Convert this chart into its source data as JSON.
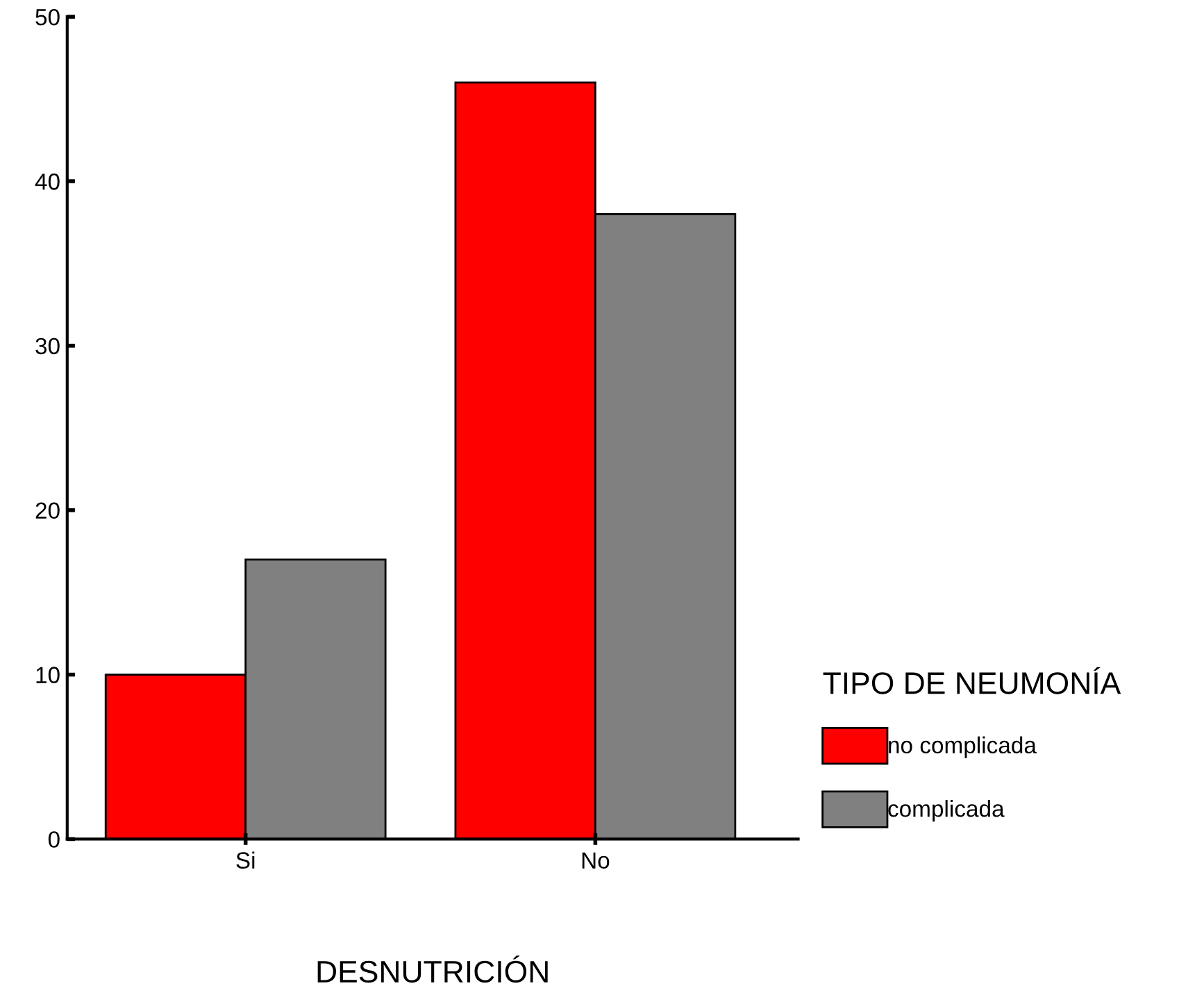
{
  "chart_data": {
    "type": "bar",
    "xlabel": "DESNUTRICIÓN",
    "legend_title": "TIPO DE NEUMONÍA",
    "categories": [
      "Si",
      "No"
    ],
    "series": [
      {
        "name": "no complicada",
        "color": "#ff0000",
        "values": [
          10,
          46
        ]
      },
      {
        "name": "complicada",
        "color": "#808080",
        "values": [
          17,
          38
        ]
      }
    ],
    "ylim": [
      0,
      50
    ],
    "yticks": [
      0,
      10,
      20,
      30,
      40,
      50
    ],
    "grid": false,
    "legend": "right"
  }
}
